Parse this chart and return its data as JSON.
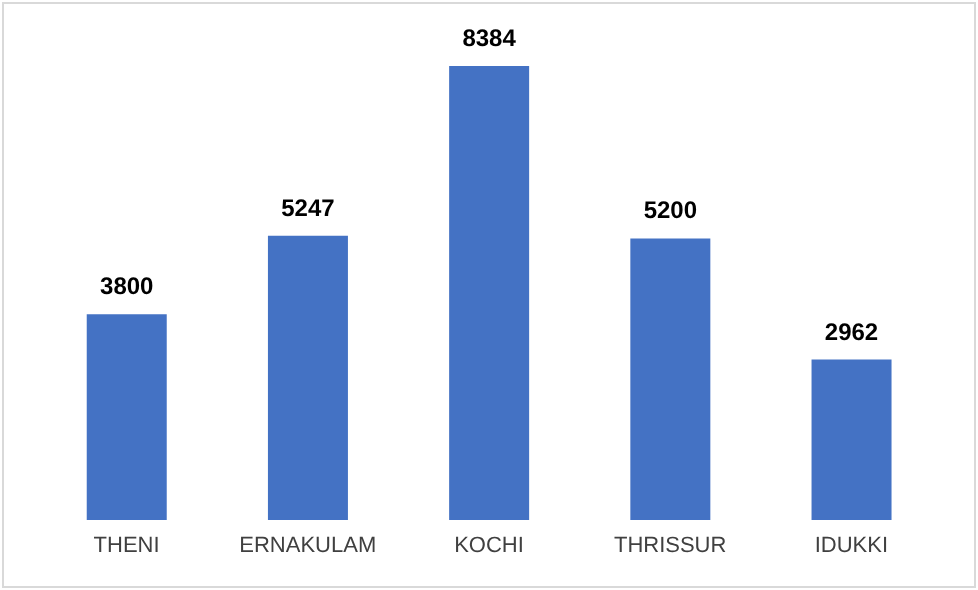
{
  "chart_data": {
    "type": "bar",
    "categories": [
      "THENI",
      "ERNAKULAM",
      "KOCHI",
      "THRISSUR",
      "IDUKKI"
    ],
    "values": [
      3800,
      5247,
      8384,
      5200,
      2962
    ],
    "color": "#4472c4",
    "data_labels": true
  }
}
